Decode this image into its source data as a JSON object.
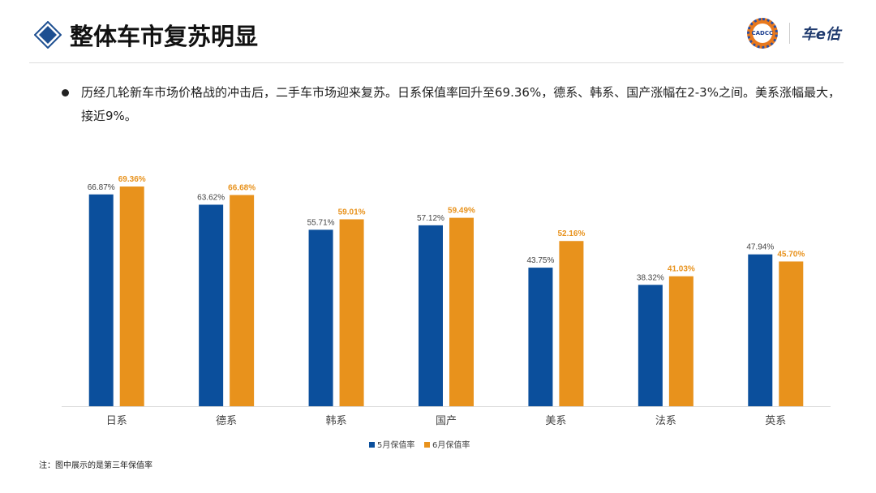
{
  "header": {
    "title": "整体车市复苏明显",
    "logo_left": "CADCC",
    "logo_right": "车e估"
  },
  "bullet": "历经几轮新车市场价格战的冲击后，二手车市场迎来复苏。日系保值率回升至69.36%，德系、韩系、国产涨幅在2-3%之间。美系涨幅最大，接近9%。",
  "note": "注：图中展示的是第三年保值率",
  "colors": {
    "may": "#0b4f9c",
    "june": "#e8921c",
    "accent": "#1d4f91"
  },
  "chart_data": {
    "type": "bar",
    "categories": [
      "日系",
      "德系",
      "韩系",
      "国产",
      "美系",
      "法系",
      "英系"
    ],
    "series": [
      {
        "name": "5月保值率",
        "values": [
          66.87,
          63.62,
          55.71,
          57.12,
          43.75,
          38.32,
          47.94
        ]
      },
      {
        "name": "6月保值率",
        "values": [
          69.36,
          66.68,
          59.01,
          59.49,
          52.16,
          41.03,
          45.7
        ]
      }
    ],
    "unit": "%",
    "ylim": [
      0,
      75
    ],
    "grid": false,
    "legend": "bottom"
  }
}
